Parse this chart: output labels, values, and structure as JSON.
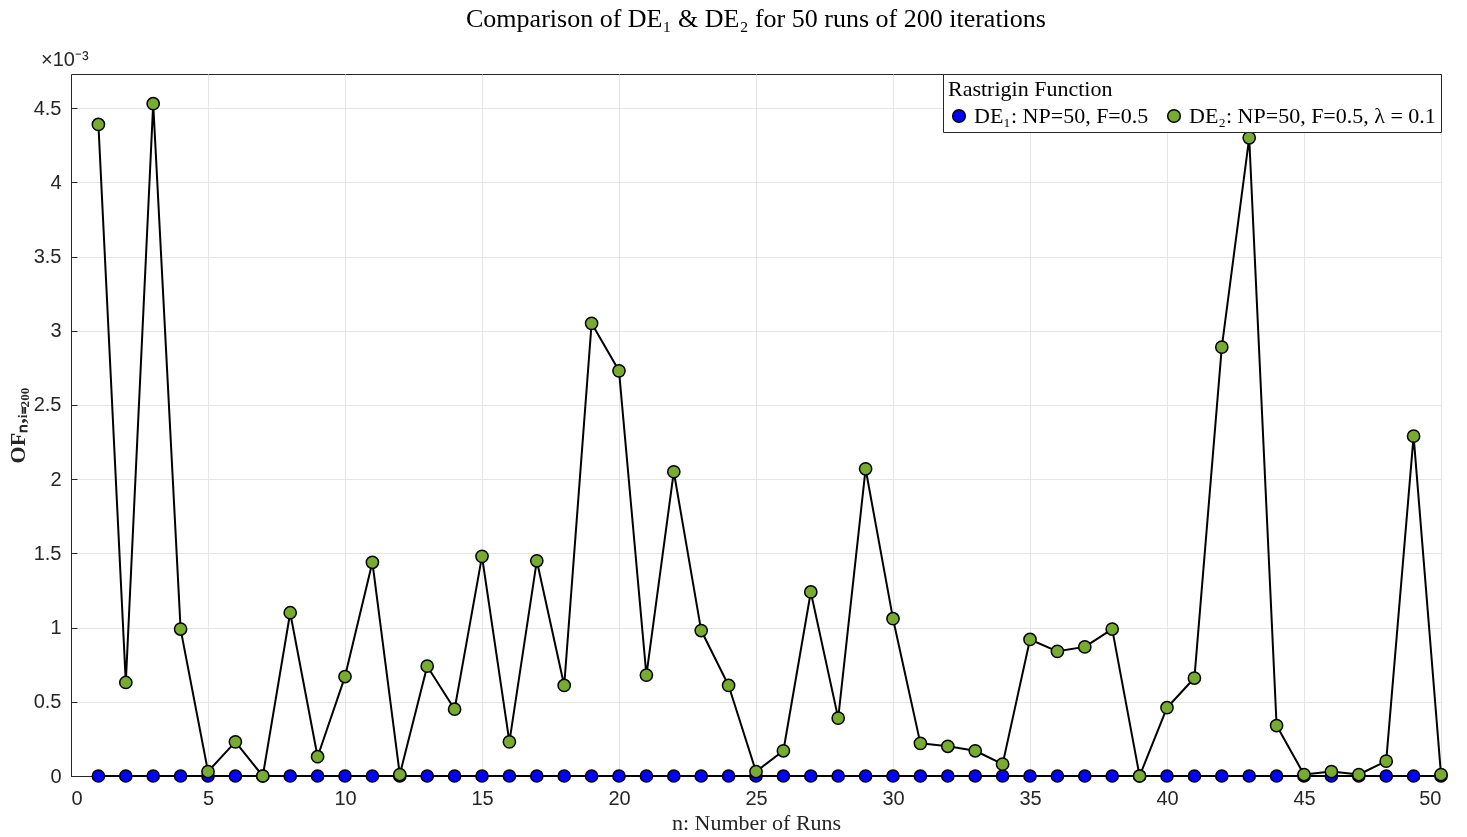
{
  "chart_data": {
    "type": "line",
    "title": "Comparison of DE₁ & DE₂ for 50 runs of 200 iterations",
    "xlabel": "n: Number of Runs",
    "ylabel": "OFₙ,ᵢ₌₂₀₀",
    "legend_title": "Rastrigin Function",
    "annotations": [
      "×10⁻³"
    ],
    "x": [
      1,
      2,
      3,
      4,
      5,
      6,
      7,
      8,
      9,
      10,
      11,
      12,
      13,
      14,
      15,
      16,
      17,
      18,
      19,
      20,
      21,
      22,
      23,
      24,
      25,
      26,
      27,
      28,
      29,
      30,
      31,
      32,
      33,
      34,
      35,
      36,
      37,
      38,
      39,
      40,
      41,
      42,
      43,
      44,
      45,
      46,
      47,
      48,
      49,
      50
    ],
    "series": [
      {
        "name": "DE₁: NP=50, F=0.5",
        "color": "#0000ff",
        "values": [
          0,
          0,
          0,
          0,
          0,
          0,
          0,
          0,
          0,
          0,
          0,
          0,
          0,
          0,
          0,
          0,
          0,
          0,
          0,
          0,
          0,
          0,
          0,
          0,
          0,
          0,
          0,
          0,
          0,
          0,
          0,
          0,
          0,
          0,
          0,
          0,
          0,
          0,
          0,
          0,
          0,
          0,
          0,
          0,
          0,
          0,
          0,
          0,
          0,
          0
        ]
      },
      {
        "name": "DE₂: NP=50, F=0.5, λ = 0.1",
        "color": "#77ac30",
        "values": [
          4.39,
          0.63,
          4.53,
          0.99,
          0.03,
          0.23,
          0,
          1.1,
          0.13,
          0.67,
          1.44,
          0.01,
          0.74,
          0.45,
          1.48,
          0.23,
          1.45,
          0.61,
          3.05,
          2.73,
          0.68,
          2.05,
          0.98,
          0.61,
          0.03,
          0.17,
          1.24,
          0.39,
          2.07,
          1.06,
          0.22,
          0.2,
          0.17,
          0.08,
          0.92,
          0.84,
          0.87,
          0.99,
          0,
          0.46,
          0.66,
          2.89,
          4.3,
          0.34,
          0.01,
          0.03,
          0.01,
          0.1,
          2.29,
          0.01
        ]
      }
    ],
    "xlim": [
      0,
      50
    ],
    "xticks": [
      0,
      5,
      10,
      15,
      20,
      25,
      30,
      35,
      40,
      45,
      50
    ],
    "ylim": [
      0,
      4.73
    ],
    "yticks": [
      0,
      0.5,
      1,
      1.5,
      2,
      2.5,
      3,
      3.5,
      4,
      4.5
    ],
    "grid": true,
    "legend": "top right",
    "marker": "circle",
    "line_style": "solid"
  }
}
